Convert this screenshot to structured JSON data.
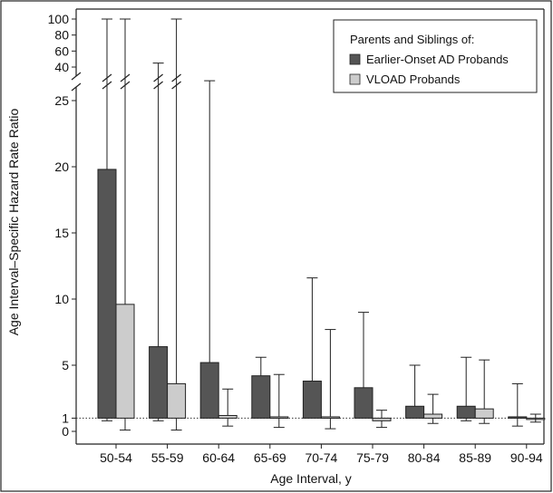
{
  "chart_data": {
    "type": "bar",
    "title": "",
    "xlabel": "Age Interval, y",
    "ylabel": "Age Interval–Specific Hazard Rate Ratio",
    "categories": [
      "50-54",
      "55-59",
      "60-64",
      "65-69",
      "70-74",
      "75-79",
      "80-84",
      "85-89",
      "90-94"
    ],
    "y_ticks_lower": [
      0,
      1,
      5,
      10,
      15,
      20,
      25
    ],
    "y_ticks_upper": [
      40,
      60,
      80,
      100
    ],
    "axis_break": true,
    "ylim_lower": [
      -0.5,
      27
    ],
    "ylim_upper": [
      30,
      100
    ],
    "reference_line": 1,
    "legend": {
      "title": "Parents and Siblings of:",
      "placement": "top-right"
    },
    "series": [
      {
        "name": "Earlier-Onset AD Probands",
        "color": "#555555",
        "values": [
          19.8,
          6.4,
          5.2,
          4.2,
          3.8,
          3.3,
          1.9,
          1.9,
          1.1
        ],
        "ci_low": [
          0.8,
          0.8,
          null,
          null,
          null,
          null,
          null,
          0.8,
          0.4
        ],
        "ci_high": [
          100,
          45,
          26.5,
          5.6,
          11.6,
          9.0,
          5.0,
          5.6,
          3.6
        ]
      },
      {
        "name": "VLOAD Probands",
        "color": "#cccccc",
        "values": [
          9.6,
          3.6,
          1.2,
          1.1,
          1.1,
          0.8,
          1.3,
          1.7,
          1.0
        ],
        "ci_low": [
          0.1,
          0.1,
          0.4,
          0.3,
          0.2,
          0.3,
          0.6,
          0.6,
          0.7
        ],
        "ci_high": [
          100,
          100,
          3.2,
          4.3,
          7.7,
          1.6,
          2.8,
          5.4,
          1.3
        ]
      }
    ]
  }
}
